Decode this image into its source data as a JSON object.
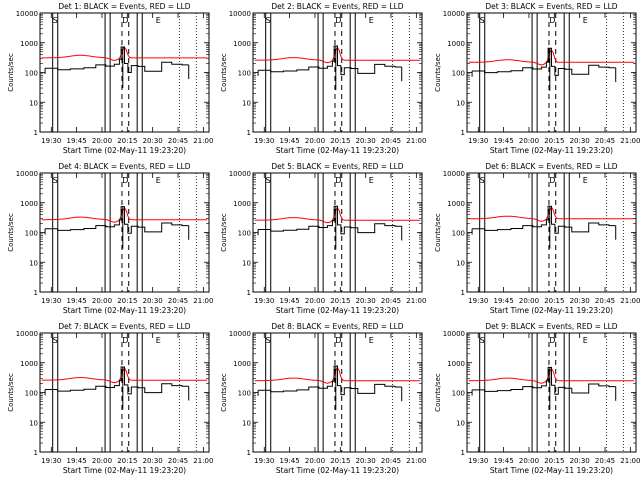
{
  "colors": {
    "events": "#000000",
    "lld": "#ff0000",
    "background": "#ffffff"
  },
  "chart_data": [
    {
      "type": "line",
      "title": "Det 1: BLACK = Events, RED = LLD",
      "ylabel": "Counts/sec",
      "xlabel": "Start Time (02-May-11 19:23:20)",
      "x_ticks": [
        "19:30",
        "19:45",
        "20:00",
        "20:15",
        "20:30",
        "20:45",
        "21:00"
      ],
      "y_ticks": [
        "1",
        "10",
        "100",
        "1000",
        "10000"
      ],
      "xlim_min": [
        0,
        100
      ],
      "ylim_log10": [
        0,
        4
      ],
      "annotations": [
        "S",
        "D",
        "E"
      ],
      "series": [
        {
          "name": "Events",
          "color": "#000000"
        },
        {
          "name": "LLD",
          "color": "#ff0000"
        }
      ],
      "base_counts": 200,
      "lld_counts": 310,
      "peak_counts": 720
    },
    {
      "type": "line",
      "title": "Det 2: BLACK = Events, RED = LLD",
      "ylabel": "Counts/sec",
      "xlabel": "Start Time (02-May-11 19:23:20)",
      "x_ticks": [
        "19:30",
        "19:45",
        "20:00",
        "20:15",
        "20:30",
        "20:45",
        "21:00"
      ],
      "y_ticks": [
        "1",
        "10",
        "100",
        "1000",
        "10000"
      ],
      "xlim_min": [
        0,
        100
      ],
      "ylim_log10": [
        0,
        4
      ],
      "annotations": [
        "S",
        "D",
        "E"
      ],
      "series": [
        {
          "name": "Events",
          "color": "#000000"
        },
        {
          "name": "LLD",
          "color": "#ff0000"
        }
      ],
      "base_counts": 170,
      "lld_counts": 260,
      "peak_counts": 780
    },
    {
      "type": "line",
      "title": "Det 3: BLACK = Events, RED = LLD",
      "ylabel": "Counts/sec",
      "xlabel": "Start Time (02-May-11 19:23:20)",
      "x_ticks": [
        "19:30",
        "19:45",
        "20:00",
        "20:15",
        "20:30",
        "20:45",
        "21:00"
      ],
      "y_ticks": [
        "1",
        "10",
        "100",
        "1000",
        "10000"
      ],
      "xlim_min": [
        0,
        100
      ],
      "ylim_log10": [
        0,
        4
      ],
      "annotations": [
        "S",
        "D",
        "E"
      ],
      "series": [
        {
          "name": "Events",
          "color": "#000000"
        },
        {
          "name": "LLD",
          "color": "#ff0000"
        }
      ],
      "base_counts": 160,
      "lld_counts": 220,
      "peak_counts": 650
    },
    {
      "type": "line",
      "title": "Det 4: BLACK = Events, RED = LLD",
      "ylabel": "Counts/sec",
      "xlabel": "Start Time (02-May-11 19:23:20)",
      "x_ticks": [
        "19:30",
        "19:45",
        "20:00",
        "20:15",
        "20:30",
        "20:45",
        "21:00"
      ],
      "y_ticks": [
        "1",
        "10",
        "100",
        "1000",
        "10000"
      ],
      "xlim_min": [
        0,
        100
      ],
      "ylim_log10": [
        0,
        4
      ],
      "annotations": [
        "S",
        "D",
        "E"
      ],
      "series": [
        {
          "name": "Events",
          "color": "#000000"
        },
        {
          "name": "LLD",
          "color": "#ff0000"
        }
      ],
      "base_counts": 190,
      "lld_counts": 270,
      "peak_counts": 740
    },
    {
      "type": "line",
      "title": "Det 5: BLACK = Events, RED = LLD",
      "ylabel": "Counts/sec",
      "xlabel": "Start Time (02-May-11 19:23:20)",
      "x_ticks": [
        "19:30",
        "19:45",
        "20:00",
        "20:15",
        "20:30",
        "20:45",
        "21:00"
      ],
      "y_ticks": [
        "1",
        "10",
        "100",
        "1000",
        "10000"
      ],
      "xlim_min": [
        0,
        100
      ],
      "ylim_log10": [
        0,
        4
      ],
      "annotations": [
        "S",
        "D",
        "E"
      ],
      "series": [
        {
          "name": "Events",
          "color": "#000000"
        },
        {
          "name": "LLD",
          "color": "#ff0000"
        }
      ],
      "base_counts": 180,
      "lld_counts": 260,
      "peak_counts": 760
    },
    {
      "type": "line",
      "title": "Det 6: BLACK = Events, RED = LLD",
      "ylabel": "Counts/sec",
      "xlabel": "Start Time (02-May-11 19:23:20)",
      "x_ticks": [
        "19:30",
        "19:45",
        "20:00",
        "20:15",
        "20:30",
        "20:45",
        "21:00"
      ],
      "y_ticks": [
        "1",
        "10",
        "100",
        "1000",
        "10000"
      ],
      "xlim_min": [
        0,
        100
      ],
      "ylim_log10": [
        0,
        4
      ],
      "annotations": [
        "S",
        "D",
        "E"
      ],
      "series": [
        {
          "name": "Events",
          "color": "#000000"
        },
        {
          "name": "LLD",
          "color": "#ff0000"
        }
      ],
      "base_counts": 190,
      "lld_counts": 290,
      "peak_counts": 760
    },
    {
      "type": "line",
      "title": "Det 7: BLACK = Events, RED = LLD",
      "ylabel": "Counts/sec",
      "xlabel": "Start Time (02-May-11 19:23:20)",
      "x_ticks": [
        "19:30",
        "19:45",
        "20:00",
        "20:15",
        "20:30",
        "20:45",
        "21:00"
      ],
      "y_ticks": [
        "1",
        "10",
        "100",
        "1000",
        "10000"
      ],
      "xlim_min": [
        0,
        100
      ],
      "ylim_log10": [
        0,
        4
      ],
      "annotations": [
        "S",
        "D",
        "E"
      ],
      "series": [
        {
          "name": "Events",
          "color": "#000000"
        },
        {
          "name": "LLD",
          "color": "#ff0000"
        }
      ],
      "base_counts": 180,
      "lld_counts": 260,
      "peak_counts": 720
    },
    {
      "type": "line",
      "title": "Det 8: BLACK = Events, RED = LLD",
      "ylabel": "Counts/sec",
      "xlabel": "Start Time (02-May-11 19:23:20)",
      "x_ticks": [
        "19:30",
        "19:45",
        "20:00",
        "20:15",
        "20:30",
        "20:45",
        "21:00"
      ],
      "y_ticks": [
        "1",
        "10",
        "100",
        "1000",
        "10000"
      ],
      "xlim_min": [
        0,
        100
      ],
      "ylim_log10": [
        0,
        4
      ],
      "annotations": [
        "S",
        "D",
        "E"
      ],
      "series": [
        {
          "name": "Events",
          "color": "#000000"
        },
        {
          "name": "LLD",
          "color": "#ff0000"
        }
      ],
      "base_counts": 170,
      "lld_counts": 250,
      "peak_counts": 780
    },
    {
      "type": "line",
      "title": "Det 9: BLACK = Events, RED = LLD",
      "ylabel": "Counts/sec",
      "xlabel": "Start Time (02-May-11 19:23:20)",
      "x_ticks": [
        "19:30",
        "19:45",
        "20:00",
        "20:15",
        "20:30",
        "20:45",
        "21:00"
      ],
      "y_ticks": [
        "1",
        "10",
        "100",
        "1000",
        "10000"
      ],
      "xlim_min": [
        0,
        100
      ],
      "ylim_log10": [
        0,
        4
      ],
      "annotations": [
        "S",
        "D",
        "E"
      ],
      "series": [
        {
          "name": "Events",
          "color": "#000000"
        },
        {
          "name": "LLD",
          "color": "#ff0000"
        }
      ],
      "base_counts": 175,
      "lld_counts": 250,
      "peak_counts": 700
    }
  ]
}
